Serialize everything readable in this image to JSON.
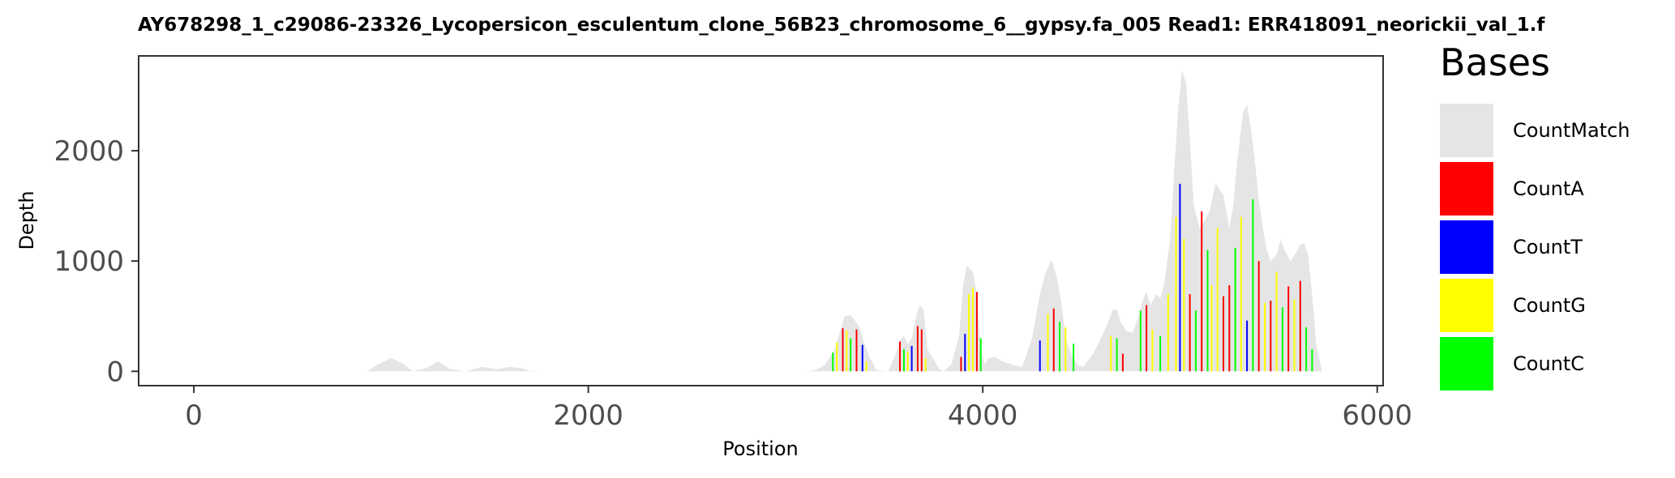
{
  "chart_data": {
    "type": "area",
    "title": "AY678298_1_c29086-23326_Lycopersicon_esculentum_clone_56B23_chromosome_6__gypsy.fa_005   Read1: ERR418091_neorickii_val_1.f",
    "xlabel": "Position",
    "ylabel": "Depth",
    "xlim": [
      -280,
      6030
    ],
    "ylim": [
      -130,
      2860
    ],
    "xticks": [
      0,
      2000,
      4000,
      6000
    ],
    "yticks": [
      0,
      1000,
      2000
    ],
    "xtick_labels": [
      "0",
      "2000",
      "4000",
      "6000"
    ],
    "ytick_labels": [
      "0",
      "1000",
      "2000"
    ],
    "grid": false,
    "legend_position": "right",
    "legend": {
      "title": "Bases",
      "entries": [
        {
          "name": "CountMatch",
          "color": "#E5E5E5"
        },
        {
          "name": "CountA",
          "color": "#FF0000"
        },
        {
          "name": "CountT",
          "color": "#0000FF"
        },
        {
          "name": "CountG",
          "color": "#FFFF00"
        },
        {
          "name": "CountC",
          "color": "#00FF00"
        }
      ]
    },
    "depth_profile": {
      "series": "CountMatch",
      "x": [
        0,
        880,
        930,
        1000,
        1060,
        1110,
        1180,
        1240,
        1300,
        1380,
        1460,
        1540,
        1600,
        1660,
        1700,
        1760,
        3100,
        3150,
        3200,
        3250,
        3280,
        3300,
        3330,
        3370,
        3420,
        3460,
        3520,
        3560,
        3580,
        3600,
        3620,
        3640,
        3660,
        3680,
        3700,
        3720,
        3780,
        3800,
        3840,
        3880,
        3900,
        3920,
        3950,
        3970,
        3990,
        4010,
        4030,
        4060,
        4100,
        4150,
        4200,
        4250,
        4290,
        4320,
        4350,
        4380,
        4400,
        4420,
        4440,
        4460,
        4480,
        4510,
        4560,
        4600,
        4630,
        4660,
        4680,
        4700,
        4730,
        4760,
        4790,
        4810,
        4830,
        4850,
        4880,
        4900,
        4920,
        4950,
        4970,
        4990,
        5010,
        5030,
        5050,
        5070,
        5100,
        5120,
        5150,
        5180,
        5200,
        5220,
        5250,
        5270,
        5290,
        5320,
        5340,
        5360,
        5380,
        5400,
        5420,
        5440,
        5460,
        5490,
        5510,
        5530,
        5560,
        5590,
        5610,
        5630,
        5650,
        5670,
        5690,
        5720
      ],
      "y": [
        0,
        0,
        60,
        120,
        70,
        0,
        30,
        90,
        20,
        0,
        40,
        20,
        40,
        30,
        5,
        0,
        0,
        10,
        60,
        200,
        380,
        500,
        510,
        420,
        150,
        10,
        0,
        160,
        280,
        320,
        250,
        300,
        480,
        600,
        560,
        200,
        20,
        0,
        60,
        320,
        780,
        960,
        900,
        700,
        200,
        60,
        120,
        130,
        90,
        60,
        40,
        300,
        700,
        900,
        1010,
        820,
        600,
        300,
        200,
        120,
        60,
        40,
        160,
        300,
        420,
        560,
        560,
        440,
        360,
        350,
        500,
        640,
        720,
        600,
        700,
        660,
        800,
        1200,
        1800,
        2350,
        2730,
        2620,
        2100,
        1500,
        1300,
        1350,
        1450,
        1700,
        1650,
        1600,
        1300,
        1500,
        1900,
        2350,
        2420,
        2200,
        1900,
        1550,
        1300,
        1100,
        1000,
        1060,
        1200,
        1100,
        1000,
        1080,
        1150,
        1160,
        1050,
        700,
        250,
        0
      ]
    },
    "base_counts": [
      {
        "x": 3240,
        "v": 170,
        "b": "C"
      },
      {
        "x": 3260,
        "v": 260,
        "b": "G"
      },
      {
        "x": 3290,
        "v": 390,
        "b": "A"
      },
      {
        "x": 3310,
        "v": 370,
        "b": "G"
      },
      {
        "x": 3330,
        "v": 300,
        "b": "C"
      },
      {
        "x": 3360,
        "v": 380,
        "b": "A"
      },
      {
        "x": 3390,
        "v": 240,
        "b": "T"
      },
      {
        "x": 3410,
        "v": 90,
        "b": "G"
      },
      {
        "x": 3580,
        "v": 270,
        "b": "A"
      },
      {
        "x": 3600,
        "v": 200,
        "b": "C"
      },
      {
        "x": 3620,
        "v": 180,
        "b": "G"
      },
      {
        "x": 3640,
        "v": 230,
        "b": "T"
      },
      {
        "x": 3670,
        "v": 410,
        "b": "A"
      },
      {
        "x": 3690,
        "v": 380,
        "b": "A"
      },
      {
        "x": 3710,
        "v": 120,
        "b": "G"
      },
      {
        "x": 3890,
        "v": 130,
        "b": "A"
      },
      {
        "x": 3910,
        "v": 340,
        "b": "T"
      },
      {
        "x": 3930,
        "v": 700,
        "b": "G"
      },
      {
        "x": 3950,
        "v": 760,
        "b": "G"
      },
      {
        "x": 3970,
        "v": 720,
        "b": "A"
      },
      {
        "x": 3990,
        "v": 300,
        "b": "C"
      },
      {
        "x": 4290,
        "v": 280,
        "b": "T"
      },
      {
        "x": 4330,
        "v": 520,
        "b": "G"
      },
      {
        "x": 4360,
        "v": 570,
        "b": "A"
      },
      {
        "x": 4390,
        "v": 450,
        "b": "C"
      },
      {
        "x": 4420,
        "v": 400,
        "b": "G"
      },
      {
        "x": 4460,
        "v": 250,
        "b": "C"
      },
      {
        "x": 4650,
        "v": 320,
        "b": "G"
      },
      {
        "x": 4680,
        "v": 300,
        "b": "C"
      },
      {
        "x": 4710,
        "v": 160,
        "b": "A"
      },
      {
        "x": 4800,
        "v": 550,
        "b": "C"
      },
      {
        "x": 4830,
        "v": 600,
        "b": "A"
      },
      {
        "x": 4860,
        "v": 380,
        "b": "G"
      },
      {
        "x": 4900,
        "v": 320,
        "b": "C"
      },
      {
        "x": 4940,
        "v": 700,
        "b": "G"
      },
      {
        "x": 4980,
        "v": 1400,
        "b": "G"
      },
      {
        "x": 5000,
        "v": 1700,
        "b": "T"
      },
      {
        "x": 5020,
        "v": 1200,
        "b": "G"
      },
      {
        "x": 5050,
        "v": 700,
        "b": "A"
      },
      {
        "x": 5080,
        "v": 550,
        "b": "C"
      },
      {
        "x": 5110,
        "v": 1450,
        "b": "A"
      },
      {
        "x": 5140,
        "v": 1100,
        "b": "C"
      },
      {
        "x": 5160,
        "v": 780,
        "b": "G"
      },
      {
        "x": 5190,
        "v": 1300,
        "b": "G"
      },
      {
        "x": 5220,
        "v": 680,
        "b": "A"
      },
      {
        "x": 5250,
        "v": 780,
        "b": "A"
      },
      {
        "x": 5280,
        "v": 1120,
        "b": "C"
      },
      {
        "x": 5310,
        "v": 1400,
        "b": "G"
      },
      {
        "x": 5340,
        "v": 460,
        "b": "T"
      },
      {
        "x": 5370,
        "v": 1560,
        "b": "C"
      },
      {
        "x": 5400,
        "v": 1000,
        "b": "A"
      },
      {
        "x": 5430,
        "v": 620,
        "b": "G"
      },
      {
        "x": 5460,
        "v": 640,
        "b": "A"
      },
      {
        "x": 5490,
        "v": 900,
        "b": "G"
      },
      {
        "x": 5520,
        "v": 580,
        "b": "C"
      },
      {
        "x": 5550,
        "v": 770,
        "b": "A"
      },
      {
        "x": 5580,
        "v": 650,
        "b": "G"
      },
      {
        "x": 5610,
        "v": 820,
        "b": "A"
      },
      {
        "x": 5640,
        "v": 400,
        "b": "C"
      },
      {
        "x": 5670,
        "v": 200,
        "b": "C"
      }
    ]
  }
}
